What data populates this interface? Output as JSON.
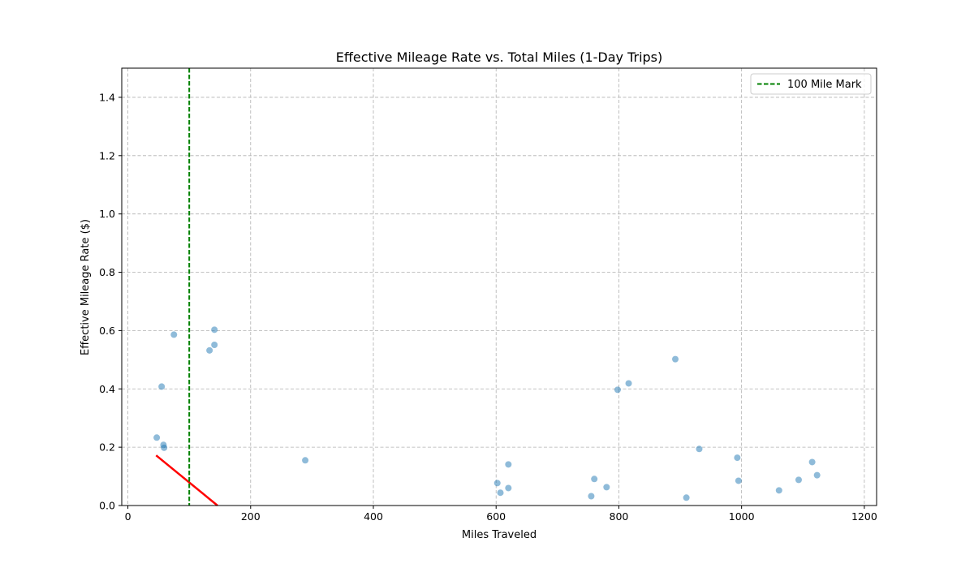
{
  "chart_data": {
    "type": "scatter",
    "title": "Effective Mileage Rate vs. Total Miles (1-Day Trips)",
    "xlabel": "Miles Traveled",
    "ylabel": "Effective Mileage Rate ($)",
    "xlim": [
      -10,
      1220
    ],
    "ylim": [
      0,
      1.5
    ],
    "xticks": [
      0,
      200,
      400,
      600,
      800,
      1000,
      1200
    ],
    "yticks": [
      0.0,
      0.2,
      0.4,
      0.6,
      0.8,
      1.0,
      1.2,
      1.4
    ],
    "xtick_labels": [
      "0",
      "200",
      "400",
      "600",
      "800",
      "1000",
      "1200"
    ],
    "ytick_labels": [
      "0.0",
      "0.2",
      "0.4",
      "0.6",
      "0.8",
      "1.0",
      "1.2",
      "1.4"
    ],
    "grid": true,
    "legend_position": "top-right",
    "points_color": "#1f77b4",
    "points": [
      {
        "x": 47,
        "y": 0.233
      },
      {
        "x": 55,
        "y": 0.408
      },
      {
        "x": 58,
        "y": 0.208
      },
      {
        "x": 59,
        "y": 0.198
      },
      {
        "x": 75,
        "y": 0.586
      },
      {
        "x": 133,
        "y": 0.532
      },
      {
        "x": 141,
        "y": 0.603
      },
      {
        "x": 141,
        "y": 0.551
      },
      {
        "x": 289,
        "y": 0.155
      },
      {
        "x": 602,
        "y": 0.077
      },
      {
        "x": 607,
        "y": 0.044
      },
      {
        "x": 620,
        "y": 0.141
      },
      {
        "x": 620,
        "y": 0.06
      },
      {
        "x": 755,
        "y": 0.032
      },
      {
        "x": 760,
        "y": 0.091
      },
      {
        "x": 780,
        "y": 0.063
      },
      {
        "x": 798,
        "y": 0.397
      },
      {
        "x": 816,
        "y": 0.419
      },
      {
        "x": 892,
        "y": 0.502
      },
      {
        "x": 910,
        "y": 0.027
      },
      {
        "x": 931,
        "y": 0.194
      },
      {
        "x": 993,
        "y": 0.164
      },
      {
        "x": 995,
        "y": 0.085
      },
      {
        "x": 1061,
        "y": 0.052
      },
      {
        "x": 1093,
        "y": 0.088
      },
      {
        "x": 1115,
        "y": 0.149
      },
      {
        "x": 1123,
        "y": 0.104
      }
    ],
    "vline": {
      "x": 100,
      "label": "100 Mile Mark",
      "color": "#008000"
    },
    "trend_line": {
      "x": [
        46,
        146
      ],
      "y": [
        0.172,
        0.0
      ],
      "color": "#ff0000"
    }
  }
}
